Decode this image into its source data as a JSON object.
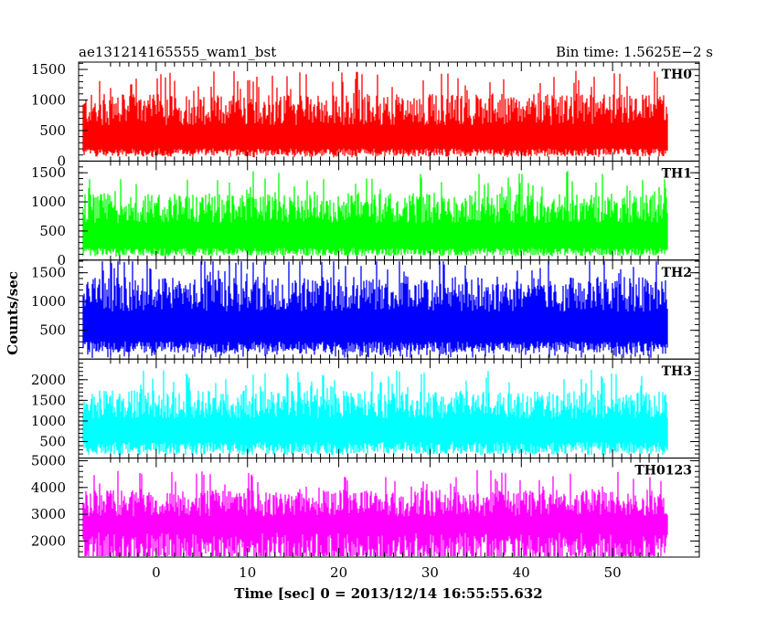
{
  "chart_data": {
    "type": "line",
    "title_left": "ae131214165555_wam1_bst",
    "title_right": "Bin time: 1.5625E−2 s",
    "xlabel": "Time [sec] 0 = 2013/12/14 16:55:55.632",
    "ylabel": "Counts/sec",
    "xlim": [
      -8.5,
      59.5
    ],
    "x_ticks": [
      0,
      10,
      20,
      30,
      40,
      50
    ],
    "x_range_data": [
      -8.0,
      56.0
    ],
    "bin_time": 0.015625,
    "grid": false,
    "legend": "none",
    "series": [
      {
        "name": "TH0",
        "color": "#ff0000",
        "ylim": [
          0,
          1620
        ],
        "y_ticks": [
          0,
          500,
          1000,
          1500
        ],
        "baseline": 150,
        "mean": 650,
        "spread": 320,
        "peak": 1600,
        "floor": 60
      },
      {
        "name": "TH1",
        "color": "#00ff00",
        "ylim": [
          0,
          1700
        ],
        "y_ticks": [
          0,
          500,
          1000,
          1500
        ],
        "baseline": 150,
        "mean": 700,
        "spread": 320,
        "peak": 1650,
        "floor": 60
      },
      {
        "name": "TH2",
        "color": "#0000ff",
        "ylim": [
          0,
          1720
        ],
        "y_ticks": [
          500,
          1000,
          1500
        ],
        "baseline": 220,
        "mean": 900,
        "spread": 380,
        "peak": 1700,
        "floor": 20
      },
      {
        "name": "TH3",
        "color": "#00ffff",
        "ylim": [
          100,
          2500
        ],
        "y_ticks": [
          500,
          1000,
          1500,
          2000
        ],
        "baseline": 350,
        "mean": 1150,
        "spread": 420,
        "peak": 2350,
        "floor": 200
      },
      {
        "name": "TH0123",
        "color": "#ff00ff",
        "ylim": [
          1400,
          5100
        ],
        "y_ticks": [
          2000,
          3000,
          4000,
          5000
        ],
        "baseline": 1650,
        "mean": 3050,
        "spread": 620,
        "peak": 4900,
        "floor": 1450
      }
    ]
  }
}
